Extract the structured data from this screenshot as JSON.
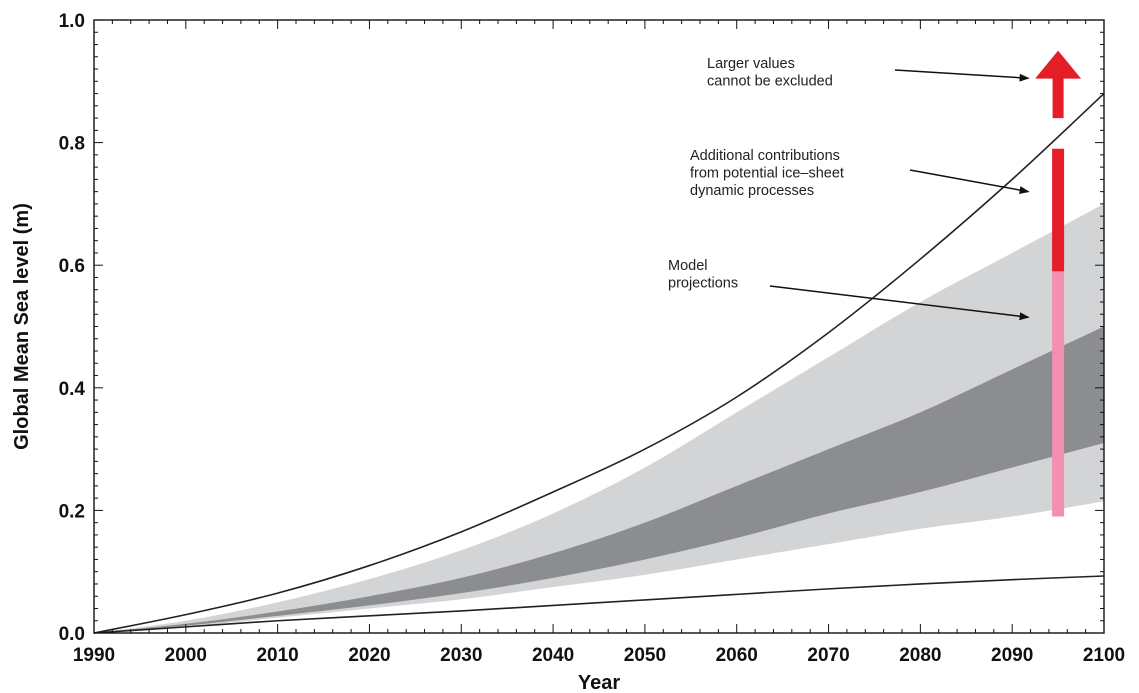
{
  "chart_data": {
    "type": "area",
    "xlabel": "Year",
    "ylabel": "Global Mean Sea level (m)",
    "xlim": [
      1990,
      2100
    ],
    "ylim": [
      0.0,
      1.0
    ],
    "x_ticks": [
      "1990",
      "2000",
      "2010",
      "2020",
      "2030",
      "2040",
      "2050",
      "2060",
      "2070",
      "2080",
      "2090",
      "2100"
    ],
    "y_ticks": [
      "0.0",
      "0.2",
      "0.4",
      "0.6",
      "0.8",
      "1.0"
    ],
    "grid": false,
    "series": [
      {
        "role": "upper-curve",
        "x": [
          1990,
          2000,
          2010,
          2020,
          2030,
          2040,
          2050,
          2060,
          2070,
          2080,
          2090,
          2100
        ],
        "values": [
          0.0,
          0.03,
          0.065,
          0.11,
          0.165,
          0.23,
          0.3,
          0.385,
          0.49,
          0.61,
          0.74,
          0.88
        ]
      },
      {
        "role": "lower-curve",
        "x": [
          1990,
          2000,
          2010,
          2020,
          2030,
          2040,
          2050,
          2060,
          2070,
          2080,
          2090,
          2100
        ],
        "values": [
          0.0,
          0.01,
          0.02,
          0.028,
          0.036,
          0.045,
          0.054,
          0.063,
          0.072,
          0.08,
          0.087,
          0.093
        ]
      },
      {
        "role": "outer-band",
        "color": "#d3d4d6",
        "x": [
          1990,
          2000,
          2010,
          2020,
          2030,
          2040,
          2050,
          2060,
          2070,
          2080,
          2090,
          2100
        ],
        "upper": [
          0.0,
          0.02,
          0.05,
          0.088,
          0.135,
          0.195,
          0.27,
          0.36,
          0.45,
          0.54,
          0.62,
          0.7
        ],
        "lower": [
          0.0,
          0.01,
          0.025,
          0.04,
          0.055,
          0.075,
          0.095,
          0.12,
          0.145,
          0.17,
          0.19,
          0.215
        ]
      },
      {
        "role": "inner-band",
        "color": "#8c8d90",
        "x": [
          1990,
          2000,
          2010,
          2020,
          2030,
          2040,
          2050,
          2060,
          2070,
          2080,
          2090,
          2100
        ],
        "upper": [
          0.0,
          0.015,
          0.035,
          0.06,
          0.09,
          0.13,
          0.18,
          0.24,
          0.3,
          0.36,
          0.43,
          0.5
        ],
        "lower": [
          0.0,
          0.012,
          0.028,
          0.045,
          0.065,
          0.09,
          0.12,
          0.155,
          0.195,
          0.23,
          0.27,
          0.31
        ]
      }
    ],
    "bars": [
      {
        "x": 2095,
        "from": 0.19,
        "to": 0.59,
        "color": "#f48fb1"
      },
      {
        "x": 2095,
        "from": 0.59,
        "to": 0.79,
        "color": "#e41e26"
      }
    ],
    "up_arrow": {
      "x": 2095,
      "from": 0.84,
      "to": 0.95,
      "color": "#e41e26"
    },
    "annotations": [
      {
        "lines": [
          "Larger values",
          "cannot be excluded"
        ],
        "points_to": [
          2092,
          0.905
        ]
      },
      {
        "lines": [
          "Additional contributions",
          "from potential ice–sheet",
          "dynamic processes"
        ],
        "points_to": [
          2092,
          0.72
        ]
      },
      {
        "lines": [
          "Model",
          "projections"
        ],
        "points_to": [
          2092,
          0.515
        ]
      }
    ]
  }
}
